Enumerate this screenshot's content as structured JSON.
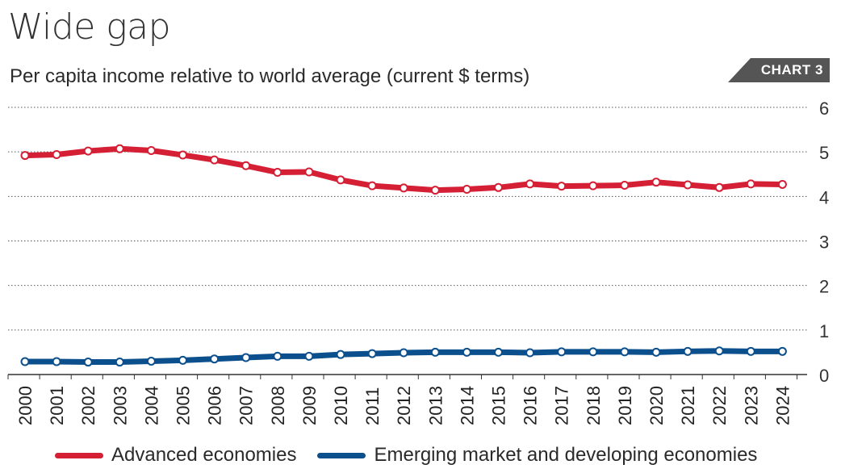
{
  "header": {
    "title": "Wide gap",
    "subtitle": "Per capita income relative to world average (current $ terms)",
    "badge": "CHART 3"
  },
  "colors": {
    "advanced": "#d41f35",
    "emerging": "#0b4f8c",
    "badge": "#555555"
  },
  "chart_data": {
    "type": "line",
    "title": "Wide gap",
    "subtitle": "Per capita income relative to world average (current $ terms)",
    "xlabel": "",
    "ylabel": "",
    "x": [
      "2000",
      "2001",
      "2002",
      "2003",
      "2004",
      "2005",
      "2006",
      "2007",
      "2008",
      "2009",
      "2010",
      "2011",
      "2012",
      "2013",
      "2014",
      "2015",
      "2016",
      "2017",
      "2018",
      "2019",
      "2020",
      "2021",
      "2022",
      "2023",
      "2024"
    ],
    "ylim": [
      0,
      6
    ],
    "yticks": [
      "0",
      "1",
      "2",
      "3",
      "4",
      "5",
      "6"
    ],
    "grid": "horizontal dotted",
    "y_axis_side": "right",
    "legend_position": "bottom",
    "series": [
      {
        "name": "Advanced economies",
        "color": "#d41f35",
        "values": [
          4.92,
          4.94,
          5.02,
          5.07,
          5.03,
          4.93,
          4.82,
          4.69,
          4.54,
          4.55,
          4.37,
          4.24,
          4.19,
          4.14,
          4.16,
          4.2,
          4.28,
          4.23,
          4.24,
          4.25,
          4.32,
          4.26,
          4.2,
          4.28,
          4.27
        ]
      },
      {
        "name": "Emerging market and developing economies",
        "color": "#0b4f8c",
        "values": [
          0.29,
          0.29,
          0.28,
          0.28,
          0.3,
          0.32,
          0.35,
          0.38,
          0.41,
          0.41,
          0.45,
          0.47,
          0.49,
          0.5,
          0.5,
          0.5,
          0.49,
          0.51,
          0.51,
          0.51,
          0.5,
          0.52,
          0.53,
          0.52,
          0.52
        ]
      }
    ]
  }
}
